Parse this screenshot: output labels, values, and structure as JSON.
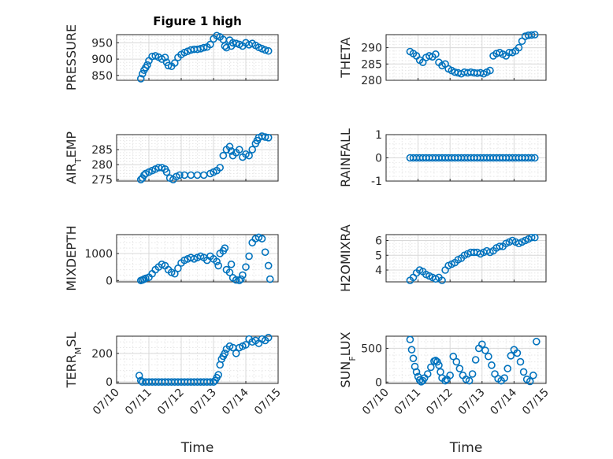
{
  "colors": {
    "marker": "#0072BD",
    "axis": "#262626",
    "grid": "#d9d9d9"
  },
  "chart_data": [
    {
      "type": "scatter",
      "panel": "PRESSURE",
      "title": "Figure 1 high",
      "ylabel": {
        "main": "PRESSURE",
        "sub": "",
        "tail": ""
      },
      "ylim": [
        835,
        975
      ],
      "yticks": [
        850,
        900,
        950
      ],
      "xlim": [
        0,
        5
      ],
      "xticks": [],
      "xlabel": "",
      "x": [
        0.75,
        0.8,
        0.85,
        0.9,
        0.95,
        1.0,
        1.1,
        1.2,
        1.3,
        1.4,
        1.5,
        1.55,
        1.6,
        1.7,
        1.8,
        1.9,
        2.0,
        2.1,
        2.2,
        2.3,
        2.4,
        2.5,
        2.6,
        2.7,
        2.8,
        2.9,
        3.0,
        3.1,
        3.2,
        3.3,
        3.35,
        3.4,
        3.5,
        3.55,
        3.6,
        3.7,
        3.8,
        3.9,
        4.0,
        4.1,
        4.2,
        4.3,
        4.4,
        4.5,
        4.6,
        4.7
      ],
      "y": [
        840,
        855,
        866,
        874,
        882,
        895,
        908,
        910,
        906,
        900,
        905,
        890,
        880,
        878,
        888,
        905,
        914,
        920,
        924,
        928,
        930,
        930,
        932,
        935,
        937,
        945,
        962,
        972,
        968,
        960,
        940,
        935,
        958,
        940,
        950,
        948,
        945,
        940,
        950,
        944,
        948,
        942,
        936,
        932,
        928,
        925
      ]
    },
    {
      "type": "scatter",
      "panel": "THETA",
      "ylabel": {
        "main": "THETA",
        "sub": "",
        "tail": ""
      },
      "ylim": [
        280,
        294
      ],
      "yticks": [
        280,
        285,
        290
      ],
      "xlim": [
        0,
        5
      ],
      "xticks": [],
      "xlabel": "",
      "x": [
        0.75,
        0.85,
        0.95,
        1.05,
        1.15,
        1.25,
        1.35,
        1.45,
        1.55,
        1.65,
        1.75,
        1.85,
        1.95,
        2.05,
        2.15,
        2.25,
        2.35,
        2.45,
        2.55,
        2.65,
        2.75,
        2.85,
        2.95,
        3.05,
        3.15,
        3.25,
        3.35,
        3.45,
        3.55,
        3.65,
        3.75,
        3.85,
        3.95,
        4.05,
        4.15,
        4.25,
        4.35,
        4.45,
        4.55,
        4.65
      ],
      "y": [
        288.8,
        288.2,
        287.5,
        286.2,
        285.5,
        287.0,
        287.5,
        287.2,
        288.0,
        285.5,
        284.5,
        285.0,
        283.5,
        283.0,
        282.5,
        282.3,
        282.0,
        282.5,
        282.3,
        282.5,
        282.3,
        282.2,
        282.3,
        282.0,
        282.5,
        283.0,
        287.5,
        288.2,
        288.5,
        288.0,
        287.5,
        288.5,
        288.5,
        289.0,
        290.0,
        292.0,
        293.5,
        293.8,
        293.9,
        294.0
      ]
    },
    {
      "type": "scatter",
      "panel": "AIR_TEMP",
      "ylabel": {
        "main": "AIR",
        "sub": "T",
        "tail": "EMP"
      },
      "ylim": [
        274.5,
        290
      ],
      "yticks": [
        275,
        280,
        285
      ],
      "xlim": [
        0,
        5
      ],
      "xticks": [],
      "xlabel": "",
      "x": [
        0.75,
        0.8,
        0.85,
        0.9,
        1.0,
        1.1,
        1.2,
        1.3,
        1.4,
        1.5,
        1.55,
        1.65,
        1.75,
        1.85,
        1.95,
        2.1,
        2.3,
        2.5,
        2.7,
        2.9,
        3.0,
        3.1,
        3.2,
        3.3,
        3.4,
        3.5,
        3.55,
        3.6,
        3.7,
        3.8,
        3.9,
        4.0,
        4.1,
        4.2,
        4.3,
        4.35,
        4.4,
        4.5,
        4.6,
        4.7
      ],
      "y": [
        275.0,
        275.5,
        276.5,
        277.0,
        277.5,
        278.0,
        278.5,
        279.0,
        279.0,
        278.5,
        277.5,
        275.5,
        275.0,
        276.0,
        276.5,
        276.5,
        276.5,
        276.5,
        276.5,
        277.0,
        277.5,
        278.0,
        279.0,
        283.0,
        285.0,
        286.0,
        284.5,
        283.0,
        284.0,
        285.0,
        282.5,
        283.5,
        283.0,
        285.0,
        287.0,
        288.0,
        289.0,
        289.5,
        289.2,
        289.0
      ]
    },
    {
      "type": "scatter",
      "panel": "RAINFALL",
      "ylabel": {
        "main": "RAINFALL",
        "sub": "",
        "tail": ""
      },
      "ylim": [
        -1,
        1
      ],
      "yticks": [
        -1,
        0,
        1
      ],
      "xlim": [
        0,
        5
      ],
      "xticks": [],
      "xlabel": "",
      "x": [
        0.75,
        0.85,
        0.95,
        1.05,
        1.15,
        1.25,
        1.35,
        1.45,
        1.55,
        1.65,
        1.75,
        1.85,
        1.95,
        2.05,
        2.15,
        2.25,
        2.35,
        2.45,
        2.55,
        2.65,
        2.75,
        2.85,
        2.95,
        3.05,
        3.15,
        3.25,
        3.35,
        3.45,
        3.55,
        3.65,
        3.75,
        3.85,
        3.95,
        4.05,
        4.15,
        4.25,
        4.35,
        4.45,
        4.55,
        4.65
      ],
      "y": [
        0,
        0,
        0,
        0,
        0,
        0,
        0,
        0,
        0,
        0,
        0,
        0,
        0,
        0,
        0,
        0,
        0,
        0,
        0,
        0,
        0,
        0,
        0,
        0,
        0,
        0,
        0,
        0,
        0,
        0,
        0,
        0,
        0,
        0,
        0,
        0,
        0,
        0,
        0,
        0
      ]
    },
    {
      "type": "scatter",
      "panel": "MIXDEPTH",
      "ylabel": {
        "main": "MIXDEPTH",
        "sub": "",
        "tail": ""
      },
      "ylim": [
        -50,
        1700
      ],
      "yticks": [
        0,
        1000
      ],
      "xlim": [
        0,
        5
      ],
      "xticks": [],
      "xlabel": "",
      "x": [
        0.75,
        0.8,
        0.85,
        0.9,
        1.0,
        1.1,
        1.2,
        1.3,
        1.4,
        1.5,
        1.6,
        1.7,
        1.8,
        1.9,
        2.0,
        2.1,
        2.2,
        2.3,
        2.4,
        2.5,
        2.6,
        2.7,
        2.8,
        2.9,
        3.0,
        3.1,
        3.15,
        3.2,
        3.3,
        3.35,
        3.4,
        3.5,
        3.55,
        3.6,
        3.7,
        3.8,
        3.85,
        3.9,
        4.0,
        4.1,
        4.2,
        4.3,
        4.4,
        4.5,
        4.6,
        4.7,
        4.75
      ],
      "y": [
        0,
        20,
        50,
        80,
        120,
        250,
        400,
        500,
        600,
        550,
        400,
        300,
        250,
        450,
        650,
        750,
        800,
        850,
        800,
        850,
        900,
        850,
        750,
        900,
        800,
        700,
        550,
        1000,
        1100,
        1200,
        400,
        300,
        600,
        100,
        20,
        0,
        50,
        200,
        500,
        900,
        1400,
        1550,
        1600,
        1550,
        1050,
        550,
        50
      ]
    },
    {
      "type": "scatter",
      "panel": "H2OMIXRA",
      "ylabel": {
        "main": "H2OMIXRA",
        "sub": "",
        "tail": ""
      },
      "ylim": [
        3.2,
        6.4
      ],
      "yticks": [
        4,
        5,
        6
      ],
      "xlim": [
        0,
        5
      ],
      "xticks": [],
      "xlabel": "",
      "x": [
        0.75,
        0.85,
        0.95,
        1.05,
        1.15,
        1.25,
        1.35,
        1.45,
        1.55,
        1.65,
        1.75,
        1.85,
        1.95,
        2.05,
        2.15,
        2.25,
        2.35,
        2.45,
        2.55,
        2.65,
        2.75,
        2.85,
        2.95,
        3.05,
        3.15,
        3.25,
        3.35,
        3.45,
        3.55,
        3.65,
        3.75,
        3.85,
        3.95,
        4.05,
        4.15,
        4.25,
        4.35,
        4.45,
        4.55,
        4.65
      ],
      "y": [
        3.3,
        3.5,
        3.8,
        4.0,
        3.9,
        3.7,
        3.6,
        3.5,
        3.4,
        3.5,
        3.3,
        4.0,
        4.3,
        4.4,
        4.5,
        4.7,
        4.8,
        5.0,
        5.1,
        5.2,
        5.2,
        5.2,
        5.1,
        5.2,
        5.3,
        5.2,
        5.3,
        5.5,
        5.6,
        5.6,
        5.8,
        5.9,
        6.0,
        5.9,
        5.8,
        5.9,
        6.0,
        6.1,
        6.2,
        6.2
      ]
    },
    {
      "type": "scatter",
      "panel": "TERR_MSL",
      "ylabel": {
        "main": "TERR",
        "sub": "M",
        "tail": "SL"
      },
      "ylim": [
        -10,
        320
      ],
      "yticks": [
        0,
        200
      ],
      "xlim": [
        0,
        5
      ],
      "xticks": [
        "07/10",
        "07/11",
        "07/12",
        "07/13",
        "07/14",
        "07/15"
      ],
      "xlabel": "Time",
      "x": [
        0.7,
        0.75,
        0.8,
        0.9,
        1.0,
        1.1,
        1.2,
        1.3,
        1.4,
        1.5,
        1.6,
        1.7,
        1.8,
        1.9,
        2.0,
        2.1,
        2.2,
        2.3,
        2.4,
        2.5,
        2.6,
        2.7,
        2.8,
        2.9,
        3.0,
        3.05,
        3.1,
        3.15,
        3.2,
        3.25,
        3.3,
        3.35,
        3.4,
        3.5,
        3.6,
        3.7,
        3.8,
        3.9,
        4.0,
        4.1,
        4.2,
        4.3,
        4.4,
        4.5,
        4.6,
        4.7
      ],
      "y": [
        45,
        10,
        0,
        0,
        0,
        0,
        0,
        0,
        0,
        0,
        0,
        0,
        0,
        0,
        0,
        0,
        0,
        0,
        0,
        0,
        0,
        0,
        0,
        0,
        0,
        10,
        30,
        50,
        120,
        160,
        180,
        200,
        230,
        250,
        240,
        200,
        240,
        250,
        260,
        300,
        280,
        290,
        270,
        300,
        290,
        310
      ]
    },
    {
      "type": "scatter",
      "panel": "SUN_FLUX",
      "ylabel": {
        "main": "SUN",
        "sub": "F",
        "tail": "LUX"
      },
      "ylim": [
        -20,
        680
      ],
      "yticks": [
        0,
        500
      ],
      "xlim": [
        0,
        5
      ],
      "xticks": [
        "07/10",
        "07/11",
        "07/12",
        "07/13",
        "07/14",
        "07/15"
      ],
      "xlabel": "Time",
      "x": [
        0.75,
        0.8,
        0.85,
        0.9,
        0.95,
        1.0,
        1.05,
        1.1,
        1.15,
        1.2,
        1.3,
        1.4,
        1.5,
        1.55,
        1.6,
        1.65,
        1.7,
        1.75,
        1.85,
        1.9,
        2.0,
        2.1,
        2.2,
        2.3,
        2.4,
        2.5,
        2.6,
        2.7,
        2.8,
        2.9,
        3.0,
        3.1,
        3.2,
        3.3,
        3.4,
        3.5,
        3.6,
        3.7,
        3.8,
        3.9,
        4.0,
        4.1,
        4.2,
        4.3,
        4.4,
        4.5,
        4.6,
        4.7
      ],
      "y": [
        630,
        480,
        350,
        230,
        150,
        80,
        30,
        5,
        20,
        60,
        120,
        220,
        310,
        320,
        300,
        250,
        150,
        60,
        20,
        40,
        100,
        380,
        300,
        200,
        100,
        40,
        20,
        120,
        330,
        500,
        560,
        470,
        380,
        250,
        120,
        50,
        20,
        60,
        200,
        390,
        480,
        430,
        300,
        150,
        40,
        10,
        100,
        600
      ]
    }
  ]
}
